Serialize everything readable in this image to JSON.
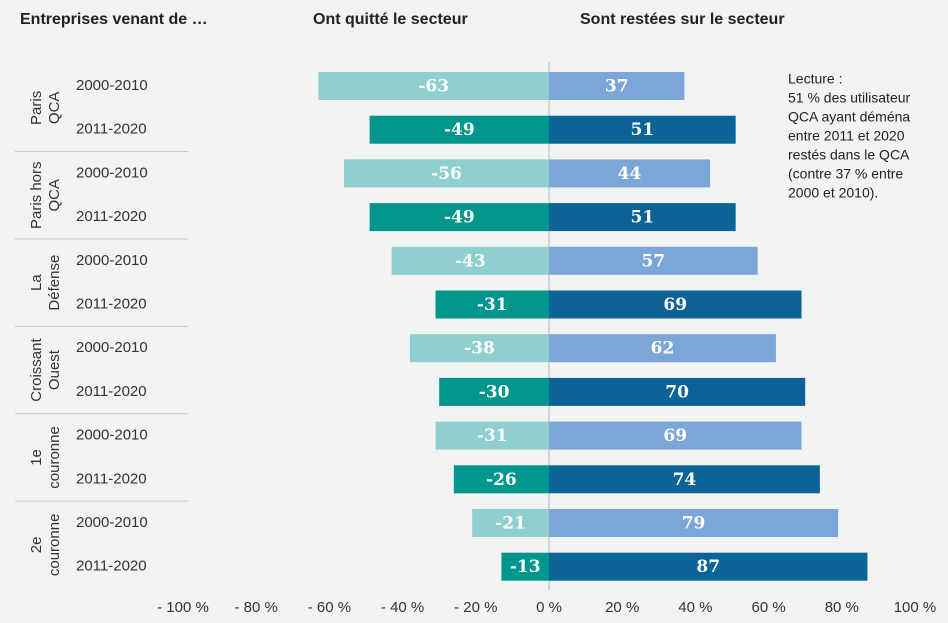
{
  "chart_data": {
    "type": "diverging-bar",
    "header": "Entreprises venant de …",
    "groups": [
      [
        "Paris",
        "QCA"
      ],
      [
        "Paris hors",
        "QCA"
      ],
      [
        "La",
        "Défense"
      ],
      [
        "Croissant",
        "Ouest"
      ],
      [
        "1e",
        "couronne"
      ],
      [
        "2e",
        "couronne"
      ]
    ],
    "periods": [
      "2000-2010",
      "2011-2020"
    ],
    "series": [
      {
        "name": "Ont quitté le secteur",
        "colors": [
          "#90cfcf",
          "#00968d"
        ],
        "values": [
          -63,
          -49,
          -56,
          -49,
          -43,
          -31,
          -38,
          -30,
          -31,
          -26,
          -21,
          -13
        ]
      },
      {
        "name": "Sont restées sur le secteur",
        "colors": [
          "#7ba6d7",
          "#0b6396"
        ],
        "values": [
          37,
          51,
          44,
          51,
          57,
          69,
          62,
          70,
          69,
          74,
          79,
          87
        ]
      }
    ],
    "xlim": [
      -100,
      100
    ],
    "xticks": [
      {
        "value": -100,
        "label": "- 100 %"
      },
      {
        "value": -80,
        "label": "- 80 %"
      },
      {
        "value": -60,
        "label": "- 60 %"
      },
      {
        "value": -40,
        "label": "- 40 %"
      },
      {
        "value": -20,
        "label": "- 20 %"
      },
      {
        "value": 0,
        "label": "0 %"
      },
      {
        "value": 20,
        "label": "20 %"
      },
      {
        "value": 40,
        "label": "40 %"
      },
      {
        "value": 60,
        "label": "60 %"
      },
      {
        "value": 80,
        "label": "80 %"
      },
      {
        "value": 100,
        "label": "100 %"
      }
    ],
    "annotation": [
      "Lecture :",
      "51 % des utilisateur",
      "QCA ayant déména",
      "entre 2011 et 2020",
      "restés dans le QCA",
      "(contre 37 % entre",
      "2000 et 2010)."
    ]
  }
}
